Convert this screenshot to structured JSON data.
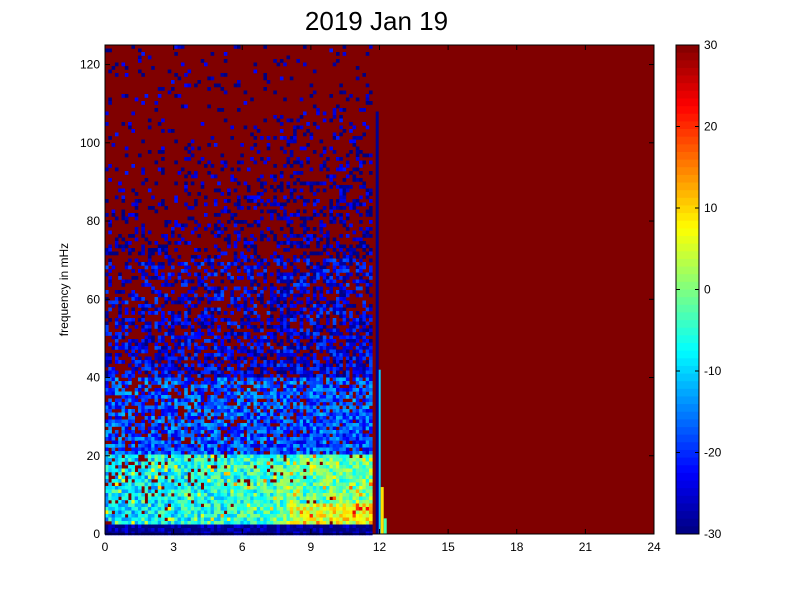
{
  "chart_data": {
    "type": "heatmap",
    "title": "2019 Jan 19",
    "xlabel": "",
    "ylabel": "frequency in mHz",
    "xlim": [
      0,
      24
    ],
    "ylim": [
      0,
      125
    ],
    "x_ticks": [
      0,
      3,
      6,
      9,
      12,
      15,
      18,
      21,
      24
    ],
    "y_ticks": [
      0,
      20,
      40,
      60,
      80,
      100,
      120
    ],
    "colorbar": {
      "range": [
        -30,
        30
      ],
      "ticks": [
        30,
        20,
        10,
        0,
        -10,
        -20,
        -30
      ],
      "colormap": "jet"
    },
    "saturated_after_hour": 11.6,
    "spike": {
      "hour": 11.9,
      "max_freq": 108
    },
    "bands": [
      {
        "freq_range": [
          0,
          2
        ],
        "value": -30
      },
      {
        "freq_range": [
          2,
          20
        ],
        "value": -10
      },
      {
        "freq_range": [
          20,
          40
        ],
        "value": -18
      },
      {
        "freq_range": [
          40,
          70
        ],
        "value": -24
      },
      {
        "freq_range": [
          70,
          125
        ],
        "value": -28
      }
    ],
    "colors": {
      "saturated": "#800000",
      "low": "#00008f"
    }
  }
}
